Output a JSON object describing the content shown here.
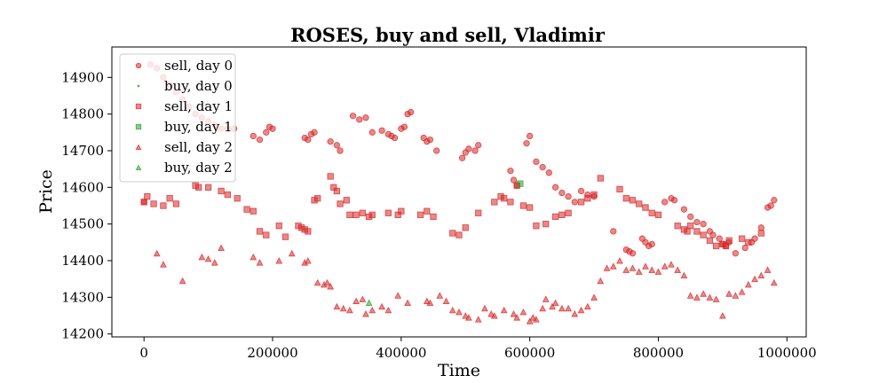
{
  "chart_data": {
    "type": "scatter",
    "title": "ROSES, buy and sell, Vladimir",
    "xlabel": "Time",
    "ylabel": "Price",
    "xlim": [
      -50000,
      1030000
    ],
    "ylim": [
      14192,
      14983
    ],
    "xticks": [
      0,
      200000,
      400000,
      600000,
      800000,
      1000000
    ],
    "yticks": [
      14200,
      14300,
      14400,
      14500,
      14600,
      14700,
      14800,
      14900
    ],
    "grid": false,
    "legend_position": "top-left",
    "series": [
      {
        "name": "sell, day 0",
        "marker": "circle",
        "color": "#d62728",
        "points": [
          [
            0,
            14560
          ],
          [
            10000,
            14935
          ],
          [
            20000,
            14925
          ],
          [
            30000,
            14900
          ],
          [
            40000,
            14880
          ],
          [
            50000,
            14860
          ],
          [
            60000,
            14840
          ],
          [
            70000,
            14820
          ],
          [
            80000,
            14800
          ],
          [
            90000,
            14790
          ],
          [
            100000,
            14780
          ],
          [
            110000,
            14770
          ],
          [
            120000,
            14760
          ],
          [
            130000,
            14760
          ],
          [
            140000,
            14760
          ],
          [
            170000,
            14740
          ],
          [
            180000,
            14730
          ],
          [
            190000,
            14750
          ],
          [
            195000,
            14765
          ],
          [
            200000,
            14760
          ],
          [
            250000,
            14735
          ],
          [
            255000,
            14730
          ],
          [
            260000,
            14745
          ],
          [
            265000,
            14750
          ],
          [
            290000,
            14725
          ],
          [
            300000,
            14715
          ],
          [
            305000,
            14700
          ],
          [
            325000,
            14795
          ],
          [
            335000,
            14785
          ],
          [
            345000,
            14790
          ],
          [
            355000,
            14750
          ],
          [
            370000,
            14755
          ],
          [
            380000,
            14745
          ],
          [
            385000,
            14740
          ],
          [
            390000,
            14735
          ],
          [
            400000,
            14760
          ],
          [
            405000,
            14765
          ],
          [
            410000,
            14800
          ],
          [
            415000,
            14805
          ],
          [
            435000,
            14735
          ],
          [
            440000,
            14725
          ],
          [
            445000,
            14730
          ],
          [
            455000,
            14700
          ],
          [
            495000,
            14680
          ],
          [
            500000,
            14695
          ],
          [
            505000,
            14705
          ],
          [
            515000,
            14700
          ],
          [
            520000,
            14715
          ],
          [
            570000,
            14645
          ],
          [
            575000,
            14620
          ],
          [
            580000,
            14605
          ],
          [
            595000,
            14720
          ],
          [
            600000,
            14740
          ],
          [
            610000,
            14670
          ],
          [
            620000,
            14655
          ],
          [
            630000,
            14640
          ],
          [
            640000,
            14600
          ],
          [
            650000,
            14585
          ],
          [
            660000,
            14575
          ],
          [
            670000,
            14560
          ],
          [
            680000,
            14590
          ],
          [
            690000,
            14580
          ],
          [
            700000,
            14575
          ],
          [
            730000,
            14480
          ],
          [
            750000,
            14430
          ],
          [
            755000,
            14425
          ],
          [
            760000,
            14420
          ],
          [
            775000,
            14460
          ],
          [
            780000,
            14450
          ],
          [
            785000,
            14440
          ],
          [
            790000,
            14445
          ],
          [
            810000,
            14560
          ],
          [
            820000,
            14570
          ],
          [
            825000,
            14565
          ],
          [
            840000,
            14540
          ],
          [
            850000,
            14520
          ],
          [
            860000,
            14505
          ],
          [
            870000,
            14500
          ],
          [
            880000,
            14480
          ],
          [
            885000,
            14470
          ],
          [
            895000,
            14460
          ],
          [
            900000,
            14445
          ],
          [
            905000,
            14440
          ],
          [
            910000,
            14450
          ],
          [
            920000,
            14420
          ],
          [
            935000,
            14435
          ],
          [
            945000,
            14450
          ],
          [
            950000,
            14460
          ],
          [
            960000,
            14490
          ],
          [
            970000,
            14545
          ],
          [
            975000,
            14550
          ],
          [
            980000,
            14565
          ]
        ]
      },
      {
        "name": "buy, day 0",
        "marker": "point",
        "color": "#2ca02c",
        "points": []
      },
      {
        "name": "sell, day 1",
        "marker": "square",
        "color": "#d62728",
        "points": [
          [
            0,
            14560
          ],
          [
            5000,
            14575
          ],
          [
            15000,
            14555
          ],
          [
            30000,
            14550
          ],
          [
            40000,
            14570
          ],
          [
            50000,
            14555
          ],
          [
            80000,
            14605
          ],
          [
            85000,
            14600
          ],
          [
            100000,
            14600
          ],
          [
            120000,
            14590
          ],
          [
            130000,
            14580
          ],
          [
            145000,
            14570
          ],
          [
            160000,
            14540
          ],
          [
            170000,
            14535
          ],
          [
            180000,
            14480
          ],
          [
            190000,
            14470
          ],
          [
            210000,
            14495
          ],
          [
            220000,
            14465
          ],
          [
            240000,
            14495
          ],
          [
            245000,
            14490
          ],
          [
            250000,
            14485
          ],
          [
            255000,
            14480
          ],
          [
            265000,
            14565
          ],
          [
            270000,
            14570
          ],
          [
            290000,
            14630
          ],
          [
            295000,
            14600
          ],
          [
            300000,
            14590
          ],
          [
            305000,
            14555
          ],
          [
            315000,
            14565
          ],
          [
            320000,
            14525
          ],
          [
            330000,
            14525
          ],
          [
            340000,
            14530
          ],
          [
            350000,
            14520
          ],
          [
            355000,
            14525
          ],
          [
            380000,
            14530
          ],
          [
            395000,
            14525
          ],
          [
            400000,
            14535
          ],
          [
            430000,
            14525
          ],
          [
            440000,
            14535
          ],
          [
            450000,
            14520
          ],
          [
            480000,
            14475
          ],
          [
            490000,
            14470
          ],
          [
            500000,
            14490
          ],
          [
            520000,
            14530
          ],
          [
            545000,
            14560
          ],
          [
            555000,
            14575
          ],
          [
            560000,
            14570
          ],
          [
            570000,
            14560
          ],
          [
            580000,
            14605
          ],
          [
            590000,
            14550
          ],
          [
            600000,
            14545
          ],
          [
            610000,
            14495
          ],
          [
            625000,
            14500
          ],
          [
            640000,
            14520
          ],
          [
            650000,
            14525
          ],
          [
            660000,
            14530
          ],
          [
            680000,
            14560
          ],
          [
            690000,
            14570
          ],
          [
            700000,
            14580
          ],
          [
            710000,
            14625
          ],
          [
            740000,
            14595
          ],
          [
            750000,
            14570
          ],
          [
            760000,
            14565
          ],
          [
            770000,
            14555
          ],
          [
            780000,
            14545
          ],
          [
            790000,
            14530
          ],
          [
            800000,
            14525
          ],
          [
            830000,
            14495
          ],
          [
            840000,
            14485
          ],
          [
            845000,
            14480
          ],
          [
            850000,
            14495
          ],
          [
            860000,
            14480
          ],
          [
            870000,
            14470
          ],
          [
            880000,
            14455
          ],
          [
            890000,
            14440
          ],
          [
            900000,
            14445
          ],
          [
            905000,
            14440
          ],
          [
            910000,
            14455
          ],
          [
            930000,
            14460
          ],
          [
            940000,
            14450
          ],
          [
            960000,
            14475
          ]
        ]
      },
      {
        "name": "buy, day 1",
        "marker": "square",
        "color": "#2ca02c",
        "points": [
          [
            585000,
            14610
          ]
        ]
      },
      {
        "name": "sell, day 2",
        "marker": "triangle",
        "color": "#d62728",
        "points": [
          [
            20000,
            14420
          ],
          [
            30000,
            14390
          ],
          [
            60000,
            14345
          ],
          [
            90000,
            14410
          ],
          [
            100000,
            14405
          ],
          [
            110000,
            14395
          ],
          [
            120000,
            14435
          ],
          [
            170000,
            14410
          ],
          [
            180000,
            14395
          ],
          [
            210000,
            14400
          ],
          [
            230000,
            14420
          ],
          [
            250000,
            14395
          ],
          [
            255000,
            14400
          ],
          [
            270000,
            14340
          ],
          [
            280000,
            14335
          ],
          [
            285000,
            14340
          ],
          [
            290000,
            14330
          ],
          [
            300000,
            14275
          ],
          [
            310000,
            14270
          ],
          [
            320000,
            14265
          ],
          [
            330000,
            14290
          ],
          [
            340000,
            14295
          ],
          [
            345000,
            14255
          ],
          [
            355000,
            14265
          ],
          [
            370000,
            14275
          ],
          [
            380000,
            14265
          ],
          [
            395000,
            14305
          ],
          [
            410000,
            14285
          ],
          [
            440000,
            14290
          ],
          [
            445000,
            14285
          ],
          [
            460000,
            14305
          ],
          [
            470000,
            14290
          ],
          [
            480000,
            14265
          ],
          [
            490000,
            14260
          ],
          [
            500000,
            14250
          ],
          [
            505000,
            14245
          ],
          [
            520000,
            14240
          ],
          [
            530000,
            14270
          ],
          [
            540000,
            14255
          ],
          [
            545000,
            14250
          ],
          [
            560000,
            14265
          ],
          [
            575000,
            14255
          ],
          [
            580000,
            14245
          ],
          [
            590000,
            14260
          ],
          [
            600000,
            14235
          ],
          [
            605000,
            14245
          ],
          [
            610000,
            14240
          ],
          [
            620000,
            14270
          ],
          [
            625000,
            14295
          ],
          [
            635000,
            14275
          ],
          [
            640000,
            14285
          ],
          [
            650000,
            14270
          ],
          [
            660000,
            14270
          ],
          [
            670000,
            14255
          ],
          [
            680000,
            14265
          ],
          [
            690000,
            14275
          ],
          [
            700000,
            14300
          ],
          [
            710000,
            14345
          ],
          [
            720000,
            14380
          ],
          [
            730000,
            14385
          ],
          [
            740000,
            14400
          ],
          [
            750000,
            14375
          ],
          [
            760000,
            14380
          ],
          [
            770000,
            14370
          ],
          [
            780000,
            14385
          ],
          [
            790000,
            14375
          ],
          [
            800000,
            14370
          ],
          [
            810000,
            14385
          ],
          [
            820000,
            14390
          ],
          [
            830000,
            14375
          ],
          [
            840000,
            14360
          ],
          [
            850000,
            14305
          ],
          [
            860000,
            14300
          ],
          [
            870000,
            14310
          ],
          [
            880000,
            14300
          ],
          [
            890000,
            14295
          ],
          [
            900000,
            14250
          ],
          [
            910000,
            14310
          ],
          [
            920000,
            14305
          ],
          [
            930000,
            14315
          ],
          [
            940000,
            14335
          ],
          [
            950000,
            14350
          ],
          [
            960000,
            14360
          ],
          [
            970000,
            14375
          ],
          [
            980000,
            14340
          ]
        ]
      },
      {
        "name": "buy, day 2",
        "marker": "triangle",
        "color": "#2ca02c",
        "points": [
          [
            350000,
            14285
          ]
        ]
      }
    ]
  }
}
